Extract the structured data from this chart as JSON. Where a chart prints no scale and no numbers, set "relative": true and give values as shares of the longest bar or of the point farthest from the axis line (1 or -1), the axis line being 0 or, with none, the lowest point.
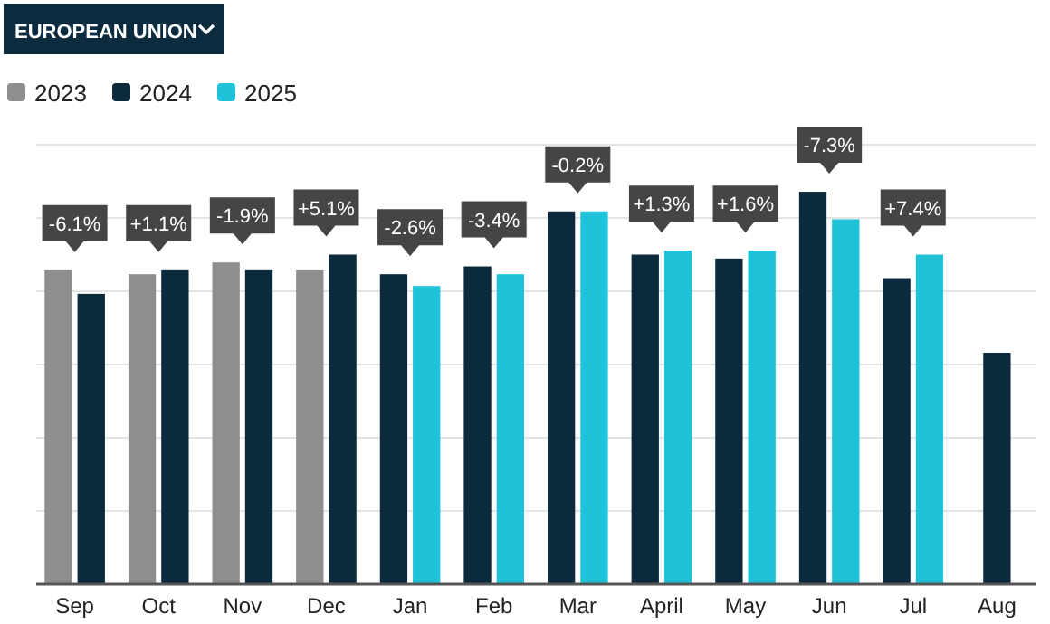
{
  "chart_data": {
    "type": "bar",
    "title": "EUROPEAN UNION",
    "relative": true,
    "categories": [
      "Sep",
      "Oct",
      "Nov",
      "Dec",
      "Jan",
      "Feb",
      "Mar",
      "April",
      "May",
      "Jun",
      "Jul",
      "Aug"
    ],
    "series": [
      {
        "name": "2023",
        "color": "#8e8e8e",
        "values": [
          0.8,
          0.79,
          0.82,
          0.8,
          null,
          null,
          null,
          null,
          null,
          null,
          null,
          null
        ]
      },
      {
        "name": "2024",
        "color": "#0b2a3c",
        "values": [
          0.74,
          0.8,
          0.8,
          0.84,
          0.79,
          0.81,
          0.95,
          0.84,
          0.83,
          1,
          0.78,
          0.59
        ]
      },
      {
        "name": "2025",
        "color": "#1ec3d9",
        "values": [
          null,
          null,
          null,
          null,
          0.76,
          0.79,
          0.95,
          0.85,
          0.85,
          0.93,
          0.84,
          null
        ]
      }
    ],
    "annotations": [
      {
        "text": "-6.1%",
        "x": "Sep",
        "y": 0.8
      },
      {
        "text": "+1.1%",
        "x": "Oct",
        "y": 0.8
      },
      {
        "text": "-1.9%",
        "x": "Nov",
        "y": 0.82
      },
      {
        "text": "+5.1%",
        "x": "Dec",
        "y": 0.84
      },
      {
        "text": "-2.6%",
        "x": "Jan",
        "y": 0.79
      },
      {
        "text": "-3.4%",
        "x": "Feb",
        "y": 0.81
      },
      {
        "text": "-0.2%",
        "x": "Mar",
        "y": 0.95
      },
      {
        "text": "+1.3%",
        "x": "April",
        "y": 0.85
      },
      {
        "text": "+1.6%",
        "x": "May",
        "y": 0.85
      },
      {
        "text": "-7.3%",
        "x": "Jun",
        "y": 1
      },
      {
        "text": "+7.4%",
        "x": "Jul",
        "y": 0.84
      }
    ],
    "grid": "y",
    "legend": "top left"
  }
}
